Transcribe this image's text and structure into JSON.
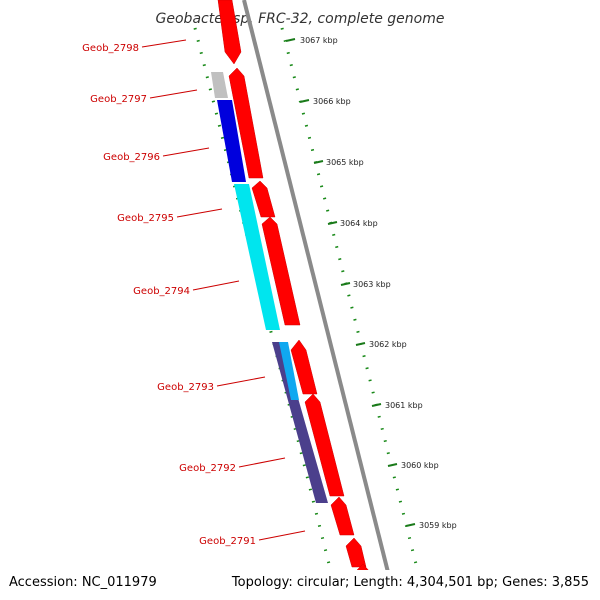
{
  "title": "Geobacter sp. FRC-32, complete genome",
  "footer": {
    "accession": "Accession: NC_011979",
    "summary": "Topology: circular; Length: 4,304,501 bp; Genes: 3,855"
  },
  "ticks": [
    "3067 kbp",
    "3066 kbp",
    "3065 kbp",
    "3064 kbp",
    "3063 kbp",
    "3062 kbp",
    "3061 kbp",
    "3060 kbp",
    "3059 kbp"
  ],
  "genes": [
    "Geob_2798",
    "Geob_2797",
    "Geob_2796",
    "Geob_2795",
    "Geob_2794",
    "Geob_2793",
    "Geob_2792",
    "Geob_2791"
  ],
  "colors": {
    "forward_cds": "#ff0000",
    "gene_label": "#cc0000",
    "backbone": "#888888",
    "gc_dots": "#1a8a1a",
    "blue": "#0000dd",
    "cyan": "#00e5ee",
    "navy": "#4b3f8c",
    "sky": "#10a8f0",
    "gray": "#c0c0c0",
    "olive": "#8aa050"
  }
}
